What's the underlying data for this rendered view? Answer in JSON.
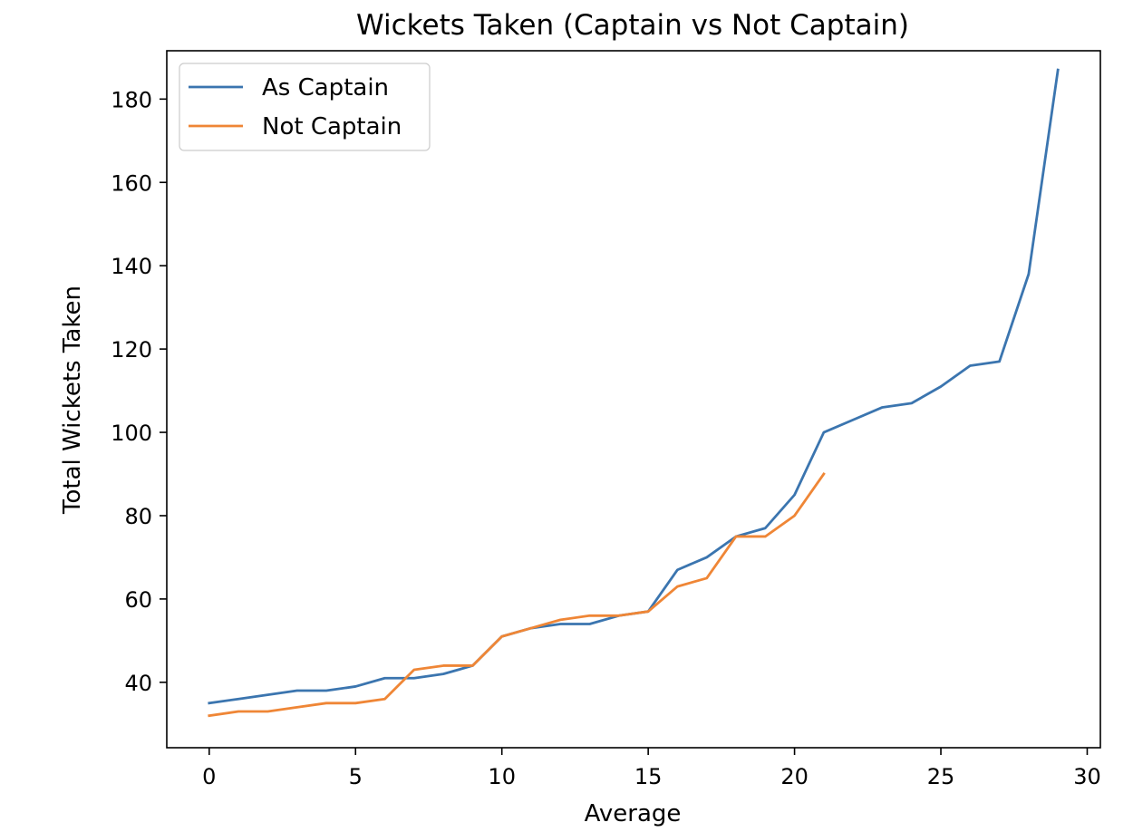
{
  "chart_data": {
    "type": "line",
    "title": "Wickets Taken (Captain vs Not Captain)",
    "xlabel": "Average",
    "ylabel": "Total Wickets Taken",
    "xlim": [
      -1.45,
      30.45
    ],
    "ylim": [
      24.3,
      191.6
    ],
    "xticks": [
      0,
      5,
      10,
      15,
      20,
      25,
      30
    ],
    "yticks": [
      40,
      60,
      80,
      100,
      120,
      140,
      160,
      180
    ],
    "xtick_labels": [
      "0",
      "5",
      "10",
      "15",
      "20",
      "25",
      "30"
    ],
    "ytick_labels": [
      "40",
      "60",
      "80",
      "100",
      "120",
      "140",
      "160",
      "180"
    ],
    "grid": false,
    "legend_position": "upper left",
    "series": [
      {
        "name": "As Captain",
        "color": "#3b75af",
        "x": [
          0,
          1,
          2,
          3,
          4,
          5,
          6,
          7,
          8,
          9,
          10,
          11,
          12,
          13,
          14,
          15,
          16,
          17,
          18,
          19,
          20,
          21,
          22,
          23,
          24,
          25,
          26,
          27,
          28,
          29
        ],
        "y": [
          35,
          36,
          37,
          38,
          38,
          39,
          41,
          41,
          42,
          44,
          51,
          53,
          54,
          54,
          56,
          57,
          67,
          70,
          75,
          77,
          85,
          100,
          103,
          106,
          107,
          111,
          116,
          117,
          138,
          187
        ]
      },
      {
        "name": "Not Captain",
        "color": "#ef8636",
        "x": [
          0,
          1,
          2,
          3,
          4,
          5,
          6,
          7,
          8,
          9,
          10,
          11,
          12,
          13,
          14,
          15,
          16,
          17,
          18,
          19,
          20,
          21
        ],
        "y": [
          32,
          33,
          33,
          34,
          35,
          35,
          36,
          43,
          44,
          44,
          51,
          53,
          55,
          56,
          56,
          57,
          63,
          65,
          75,
          75,
          80,
          90
        ]
      }
    ]
  }
}
